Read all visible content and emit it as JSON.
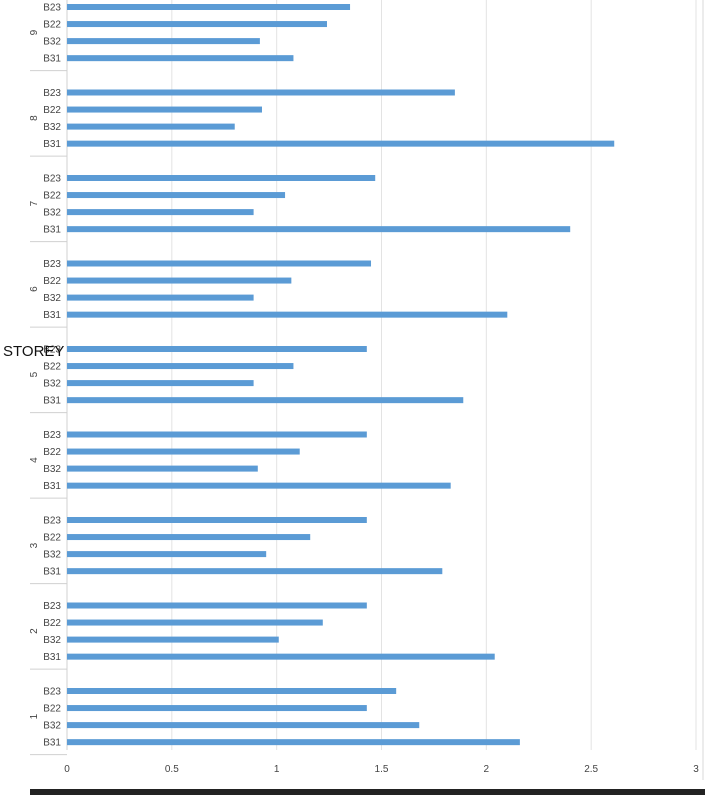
{
  "chart_data": {
    "type": "bar",
    "orientation": "horizontal",
    "ylabel": "STOREY",
    "xlim": [
      0,
      3
    ],
    "x_ticks": [
      "0",
      "0.5",
      "1",
      "1.5",
      "2",
      "2.5",
      "3"
    ],
    "grid": "vertical",
    "bar_color": "#5b9bd5",
    "groups": [
      {
        "label": "1",
        "categories": [
          "B31",
          "B32",
          "B22",
          "B23"
        ],
        "values": [
          2.16,
          1.68,
          1.43,
          1.57
        ]
      },
      {
        "label": "2",
        "categories": [
          "B31",
          "B32",
          "B22",
          "B23"
        ],
        "values": [
          2.04,
          1.01,
          1.22,
          1.43
        ]
      },
      {
        "label": "3",
        "categories": [
          "B31",
          "B32",
          "B22",
          "B23"
        ],
        "values": [
          1.79,
          0.95,
          1.16,
          1.43
        ]
      },
      {
        "label": "4",
        "categories": [
          "B31",
          "B32",
          "B22",
          "B23"
        ],
        "values": [
          1.83,
          0.91,
          1.11,
          1.43
        ]
      },
      {
        "label": "5",
        "categories": [
          "B31",
          "B32",
          "B22",
          "B23"
        ],
        "values": [
          1.89,
          0.89,
          1.08,
          1.43
        ]
      },
      {
        "label": "6",
        "categories": [
          "B31",
          "B32",
          "B22",
          "B23"
        ],
        "values": [
          2.1,
          0.89,
          1.07,
          1.45
        ]
      },
      {
        "label": "7",
        "categories": [
          "B31",
          "B32",
          "B22",
          "B23"
        ],
        "values": [
          2.4,
          0.89,
          1.04,
          1.47
        ]
      },
      {
        "label": "8",
        "categories": [
          "B31",
          "B32",
          "B22",
          "B23"
        ],
        "values": [
          2.61,
          0.8,
          0.93,
          1.85
        ]
      },
      {
        "label": "9",
        "categories": [
          "B31",
          "B32",
          "B22",
          "B23"
        ],
        "values": [
          1.08,
          0.92,
          1.24,
          1.35
        ]
      }
    ]
  }
}
